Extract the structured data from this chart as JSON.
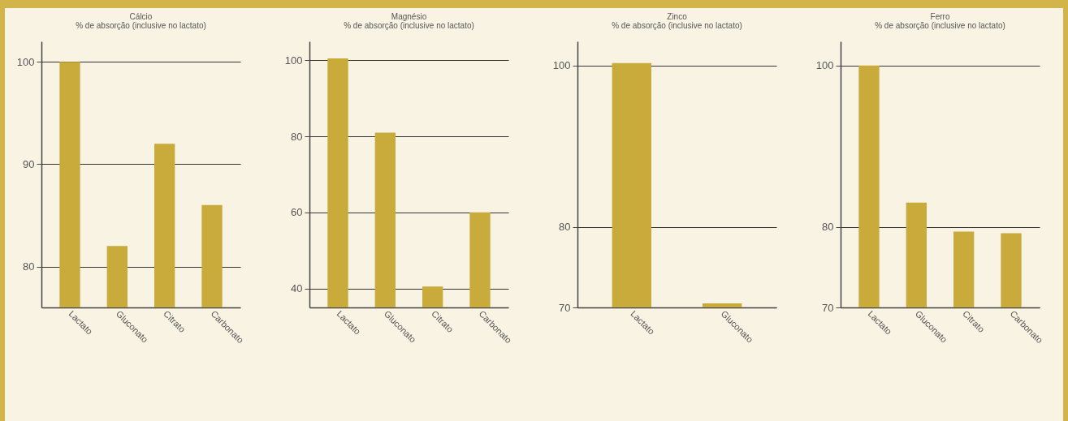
{
  "chart_data": [
    {
      "type": "bar",
      "title": "Cálcio",
      "subtitle": "% de absorção (inclusive no lactato)",
      "categories": [
        "Lactato",
        "Gluconato",
        "Citrato",
        "Carbonato"
      ],
      "values": [
        100,
        82,
        92,
        86
      ],
      "color": "#c9ab3b",
      "ylim": [
        76,
        102
      ],
      "yticks": [
        80,
        90,
        100
      ],
      "grid": "y"
    },
    {
      "type": "bar",
      "title": "Magnésio",
      "subtitle": "% de absorção (inclusive no lactato)",
      "categories": [
        "Lactato",
        "Gluconato",
        "Citrato",
        "Carbonato"
      ],
      "values": [
        100.5,
        81,
        40.5,
        60
      ],
      "color": "#c9ab3b",
      "ylim": [
        35,
        105
      ],
      "yticks": [
        40,
        60,
        80,
        100
      ],
      "grid": "y"
    },
    {
      "type": "bar",
      "title": "Zinco",
      "subtitle": "% de absorção (inclusive no lactato)",
      "categories": [
        "Lactato",
        "Gluconato"
      ],
      "values": [
        100.3,
        70.5
      ],
      "color": "#c9ab3b",
      "ylim": [
        70,
        103
      ],
      "yticks": [
        70,
        80,
        100
      ],
      "grid": "y"
    },
    {
      "type": "bar",
      "title": "Ferro",
      "subtitle": "% de absorção (inclusive no lactato)",
      "categories": [
        "Lactato",
        "Gluconato",
        "Citrato",
        "Carbonato"
      ],
      "values": [
        100,
        83,
        79.4,
        79.2
      ],
      "color": "#c9ab3b",
      "ylim": [
        70,
        103
      ],
      "yticks": [
        70,
        80,
        100
      ],
      "grid": "y"
    }
  ]
}
